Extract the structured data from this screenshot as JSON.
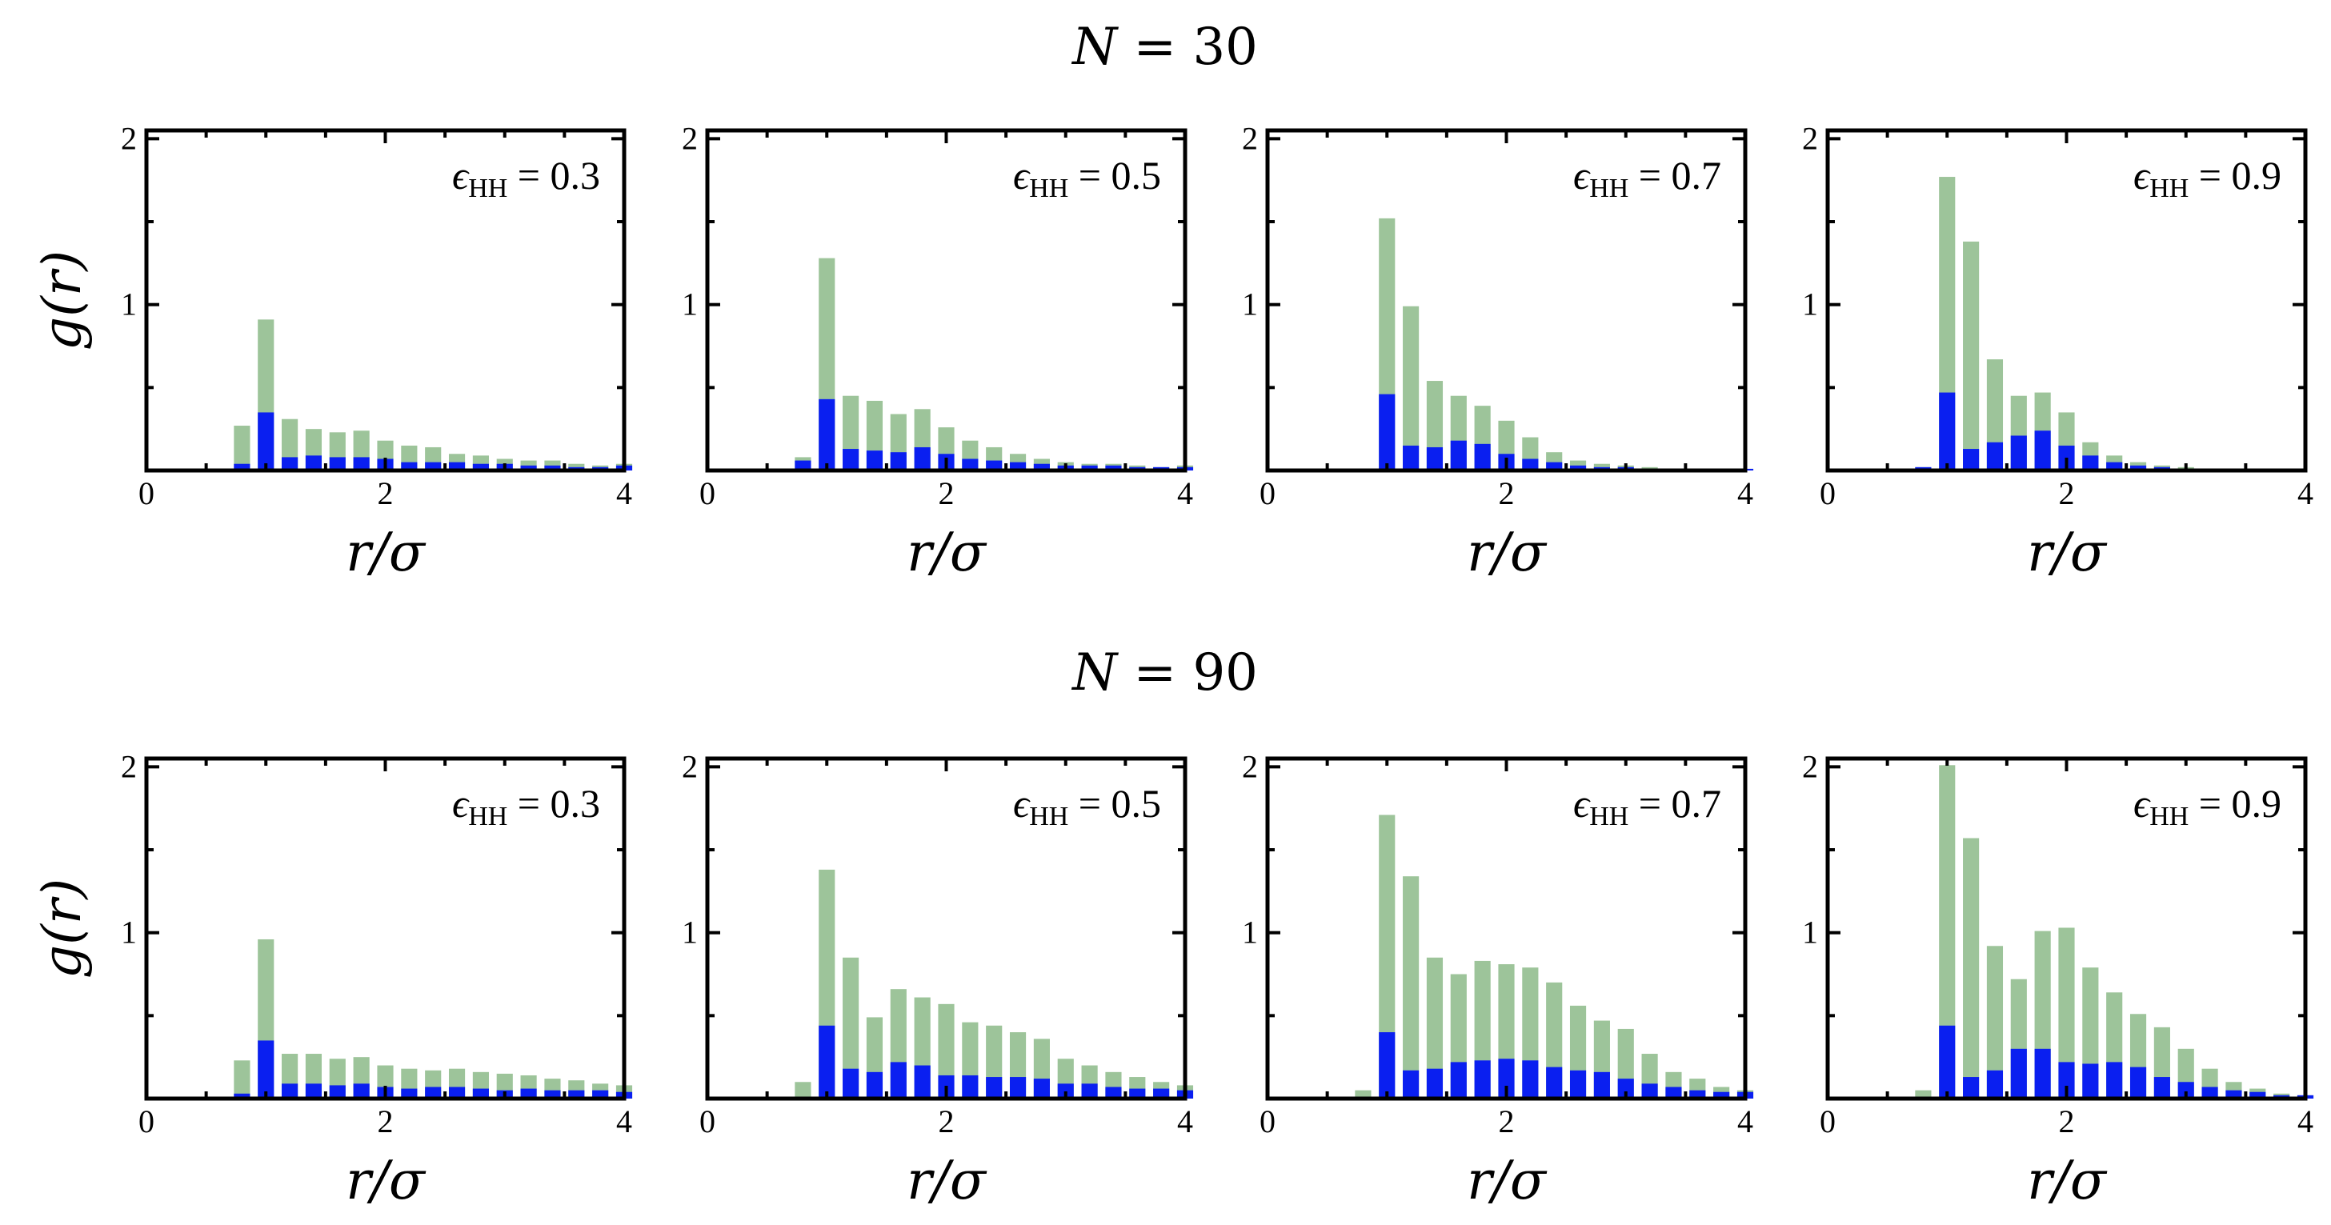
{
  "colors": {
    "total": "#9dc49a",
    "head": "#0a1ff0",
    "axis": "#000000"
  },
  "row_titles": [
    {
      "text": "N = 30",
      "var": "N",
      "rest": " = 30"
    },
    {
      "text": "N = 90",
      "var": "N",
      "rest": " = 90"
    }
  ],
  "labels": {
    "y": "g(r)",
    "x": "r/σ"
  },
  "chart_data": [
    {
      "type": "bar",
      "row": "N = 30",
      "annotation": "ϵHH = 0.3",
      "eps_label": "0.3",
      "xlim": [
        0,
        4
      ],
      "ylim": [
        0,
        2.05
      ],
      "xticks": [
        0,
        2,
        4
      ],
      "yticks": [
        1,
        2
      ],
      "xlabel": "r/σ",
      "ylabel": "g(r)",
      "x": [
        0.8,
        1.0,
        1.2,
        1.4,
        1.6,
        1.8,
        2.0,
        2.2,
        2.4,
        2.6,
        2.8,
        3.0,
        3.2,
        3.4,
        3.6,
        3.8,
        4.0
      ],
      "series": [
        {
          "name": "total",
          "values": [
            0.27,
            0.91,
            0.31,
            0.25,
            0.23,
            0.24,
            0.18,
            0.15,
            0.14,
            0.1,
            0.09,
            0.07,
            0.06,
            0.06,
            0.04,
            0.03,
            0.04
          ]
        },
        {
          "name": "head",
          "values": [
            0.04,
            0.35,
            0.08,
            0.09,
            0.08,
            0.08,
            0.07,
            0.05,
            0.05,
            0.05,
            0.04,
            0.04,
            0.03,
            0.03,
            0.02,
            0.02,
            0.03
          ]
        }
      ]
    },
    {
      "type": "bar",
      "row": "N = 30",
      "annotation": "ϵHH = 0.5",
      "eps_label": "0.5",
      "xlim": [
        0,
        4
      ],
      "ylim": [
        0,
        2.05
      ],
      "xticks": [
        0,
        2,
        4
      ],
      "yticks": [
        1,
        2
      ],
      "xlabel": "r/σ",
      "ylabel": "g(r)",
      "x": [
        0.8,
        1.0,
        1.2,
        1.4,
        1.6,
        1.8,
        2.0,
        2.2,
        2.4,
        2.6,
        2.8,
        3.0,
        3.2,
        3.4,
        3.6,
        3.8,
        4.0
      ],
      "series": [
        {
          "name": "total",
          "values": [
            0.08,
            1.28,
            0.45,
            0.42,
            0.34,
            0.37,
            0.26,
            0.18,
            0.14,
            0.1,
            0.07,
            0.05,
            0.04,
            0.04,
            0.03,
            0.02,
            0.03
          ]
        },
        {
          "name": "head",
          "values": [
            0.06,
            0.43,
            0.13,
            0.12,
            0.11,
            0.14,
            0.1,
            0.07,
            0.06,
            0.05,
            0.04,
            0.03,
            0.03,
            0.03,
            0.02,
            0.02,
            0.02
          ]
        }
      ]
    },
    {
      "type": "bar",
      "row": "N = 30",
      "annotation": "ϵHH = 0.7",
      "eps_label": "0.7",
      "xlim": [
        0,
        4
      ],
      "ylim": [
        0,
        2.05
      ],
      "xticks": [
        0,
        2,
        4
      ],
      "yticks": [
        1,
        2
      ],
      "xlabel": "r/σ",
      "ylabel": "g(r)",
      "x": [
        0.8,
        1.0,
        1.2,
        1.4,
        1.6,
        1.8,
        2.0,
        2.2,
        2.4,
        2.6,
        2.8,
        3.0,
        3.2,
        3.4,
        3.6,
        3.8,
        4.0
      ],
      "series": [
        {
          "name": "total",
          "values": [
            0.01,
            1.52,
            0.99,
            0.54,
            0.45,
            0.39,
            0.3,
            0.2,
            0.11,
            0.06,
            0.04,
            0.03,
            0.02,
            0.01,
            0.01,
            0.01,
            0.01
          ]
        },
        {
          "name": "head",
          "values": [
            0.0,
            0.46,
            0.15,
            0.14,
            0.18,
            0.16,
            0.1,
            0.07,
            0.05,
            0.03,
            0.02,
            0.02,
            0.01,
            0.01,
            0.01,
            0.0,
            0.01
          ]
        }
      ]
    },
    {
      "type": "bar",
      "row": "N = 30",
      "annotation": "ϵHH = 0.9",
      "eps_label": "0.9",
      "xlim": [
        0,
        4
      ],
      "ylim": [
        0,
        2.05
      ],
      "xticks": [
        0,
        2,
        4
      ],
      "yticks": [
        1,
        2
      ],
      "xlabel": "r/σ",
      "ylabel": "g(r)",
      "x": [
        0.8,
        1.0,
        1.2,
        1.4,
        1.6,
        1.8,
        2.0,
        2.2,
        2.4,
        2.6,
        2.8,
        3.0,
        3.2,
        3.4,
        3.6,
        3.8,
        4.0
      ],
      "series": [
        {
          "name": "total",
          "values": [
            0.02,
            1.77,
            1.38,
            0.67,
            0.45,
            0.47,
            0.35,
            0.17,
            0.09,
            0.05,
            0.03,
            0.02,
            0.01,
            0.01,
            0.01,
            0.0,
            0.0
          ]
        },
        {
          "name": "head",
          "values": [
            0.02,
            0.47,
            0.13,
            0.17,
            0.21,
            0.24,
            0.15,
            0.09,
            0.05,
            0.03,
            0.02,
            0.01,
            0.01,
            0.01,
            0.0,
            0.0,
            0.0
          ]
        }
      ]
    },
    {
      "type": "bar",
      "row": "N = 90",
      "annotation": "ϵHH = 0.3",
      "eps_label": "0.3",
      "xlim": [
        0,
        4
      ],
      "ylim": [
        0,
        2.05
      ],
      "xticks": [
        0,
        2,
        4
      ],
      "yticks": [
        1,
        2
      ],
      "xlabel": "r/σ",
      "ylabel": "g(r)",
      "x": [
        0.8,
        1.0,
        1.2,
        1.4,
        1.6,
        1.8,
        2.0,
        2.2,
        2.4,
        2.6,
        2.8,
        3.0,
        3.2,
        3.4,
        3.6,
        3.8,
        4.0
      ],
      "series": [
        {
          "name": "total",
          "values": [
            0.23,
            0.96,
            0.27,
            0.27,
            0.24,
            0.25,
            0.2,
            0.18,
            0.17,
            0.18,
            0.16,
            0.15,
            0.14,
            0.12,
            0.11,
            0.09,
            0.08
          ]
        },
        {
          "name": "head",
          "values": [
            0.03,
            0.35,
            0.09,
            0.09,
            0.08,
            0.09,
            0.07,
            0.06,
            0.07,
            0.07,
            0.06,
            0.05,
            0.06,
            0.05,
            0.05,
            0.05,
            0.04
          ]
        }
      ]
    },
    {
      "type": "bar",
      "row": "N = 90",
      "annotation": "ϵHH = 0.5",
      "eps_label": "0.5",
      "xlim": [
        0,
        4
      ],
      "ylim": [
        0,
        2.05
      ],
      "xticks": [
        0,
        2,
        4
      ],
      "yticks": [
        1,
        2
      ],
      "xlabel": "r/σ",
      "ylabel": "g(r)",
      "x": [
        0.8,
        1.0,
        1.2,
        1.4,
        1.6,
        1.8,
        2.0,
        2.2,
        2.4,
        2.6,
        2.8,
        3.0,
        3.2,
        3.4,
        3.6,
        3.8,
        4.0
      ],
      "series": [
        {
          "name": "total",
          "values": [
            0.1,
            1.38,
            0.85,
            0.49,
            0.66,
            0.61,
            0.57,
            0.46,
            0.44,
            0.4,
            0.36,
            0.24,
            0.2,
            0.16,
            0.13,
            0.1,
            0.08
          ]
        },
        {
          "name": "head",
          "values": [
            0.01,
            0.44,
            0.18,
            0.16,
            0.22,
            0.2,
            0.14,
            0.14,
            0.13,
            0.13,
            0.12,
            0.09,
            0.09,
            0.07,
            0.06,
            0.06,
            0.05
          ]
        }
      ]
    },
    {
      "type": "bar",
      "row": "N = 90",
      "annotation": "ϵHH = 0.7",
      "eps_label": "0.7",
      "xlim": [
        0,
        4
      ],
      "ylim": [
        0,
        2.05
      ],
      "xticks": [
        0,
        2,
        4
      ],
      "yticks": [
        1,
        2
      ],
      "xlabel": "r/σ",
      "ylabel": "g(r)",
      "x": [
        0.8,
        1.0,
        1.2,
        1.4,
        1.6,
        1.8,
        2.0,
        2.2,
        2.4,
        2.6,
        2.8,
        3.0,
        3.2,
        3.4,
        3.6,
        3.8,
        4.0
      ],
      "series": [
        {
          "name": "total",
          "values": [
            0.05,
            1.71,
            1.34,
            0.85,
            0.75,
            0.83,
            0.81,
            0.79,
            0.7,
            0.56,
            0.47,
            0.42,
            0.27,
            0.16,
            0.12,
            0.07,
            0.05
          ]
        },
        {
          "name": "head",
          "values": [
            0.01,
            0.4,
            0.17,
            0.18,
            0.22,
            0.23,
            0.24,
            0.23,
            0.19,
            0.17,
            0.16,
            0.12,
            0.09,
            0.07,
            0.05,
            0.04,
            0.04
          ]
        }
      ]
    },
    {
      "type": "bar",
      "row": "N = 90",
      "annotation": "ϵHH = 0.9",
      "eps_label": "0.9",
      "xlim": [
        0,
        4
      ],
      "ylim": [
        0,
        2.05
      ],
      "xticks": [
        0,
        2,
        4
      ],
      "yticks": [
        1,
        2
      ],
      "xlabel": "r/σ",
      "ylabel": "g(r)",
      "x": [
        0.8,
        1.0,
        1.2,
        1.4,
        1.6,
        1.8,
        2.0,
        2.2,
        2.4,
        2.6,
        2.8,
        3.0,
        3.2,
        3.4,
        3.6,
        3.8,
        4.0
      ],
      "series": [
        {
          "name": "total",
          "values": [
            0.05,
            2.01,
            1.57,
            0.92,
            0.72,
            1.01,
            1.03,
            0.79,
            0.64,
            0.51,
            0.43,
            0.3,
            0.18,
            0.1,
            0.06,
            0.03,
            0.02
          ]
        },
        {
          "name": "head",
          "values": [
            0.01,
            0.44,
            0.13,
            0.17,
            0.3,
            0.3,
            0.22,
            0.21,
            0.22,
            0.19,
            0.13,
            0.1,
            0.07,
            0.05,
            0.04,
            0.02,
            0.02
          ]
        }
      ]
    }
  ]
}
